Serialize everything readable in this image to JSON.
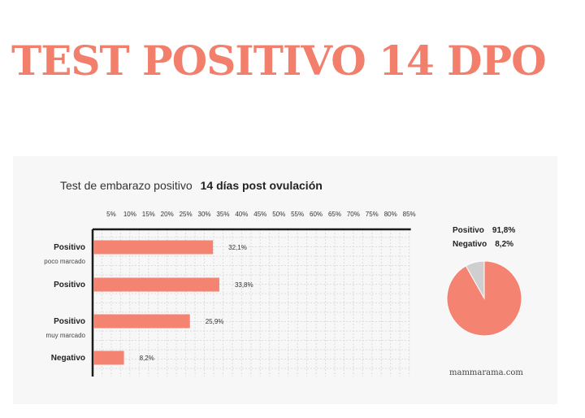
{
  "headline": "TEST POSITIVO 14 DPO",
  "chart_data": [
    {
      "type": "bar",
      "orientation": "horizontal",
      "title": "Test de embarazo positivo",
      "title_bold": "14 días post ovulación",
      "categories": [
        {
          "label": "Positivo",
          "sublabel": "poco marcado"
        },
        {
          "label": "Positivo",
          "sublabel": ""
        },
        {
          "label": "Positivo",
          "sublabel": "muy marcado"
        },
        {
          "label": "Negativo",
          "sublabel": ""
        }
      ],
      "values": [
        32.1,
        33.8,
        25.9,
        8.2
      ],
      "value_labels": [
        "32,1%",
        "33,8%",
        "25,9%",
        "8,2%"
      ],
      "xlim": [
        0,
        85
      ],
      "xticks": [
        "5%",
        "10%",
        "15%",
        "20%",
        "25%",
        "30%",
        "35%",
        "40%",
        "45%",
        "50%",
        "55%",
        "60%",
        "65%",
        "70%",
        "75%",
        "80%",
        "85%"
      ],
      "grid": true,
      "bar_color": "#f48372"
    },
    {
      "type": "pie",
      "slices": [
        {
          "label": "Positivo",
          "value": 91.8,
          "value_label": "91,8%",
          "color": "#f48372"
        },
        {
          "label": "Negativo",
          "value": 8.2,
          "value_label": "8,2%",
          "color": "#cfcfcf"
        }
      ]
    }
  ],
  "watermark": "mammarama.com"
}
